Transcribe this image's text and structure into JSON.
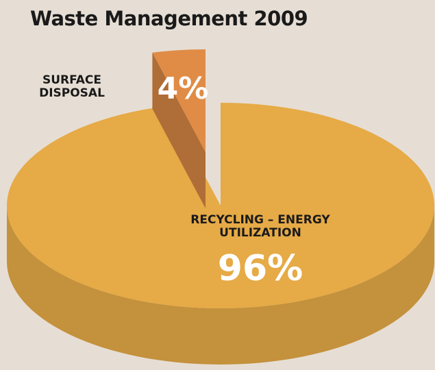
{
  "chart_data": {
    "type": "pie",
    "title": "Waste Management 2009",
    "categories": [
      "RECYCLING – ENERGY UTILIZATION",
      "SURFACE DISPOSAL"
    ],
    "values": [
      96,
      4
    ],
    "value_labels": [
      "96%",
      "4%"
    ],
    "colors": [
      "#e6aa46",
      "#e08c46"
    ]
  }
}
